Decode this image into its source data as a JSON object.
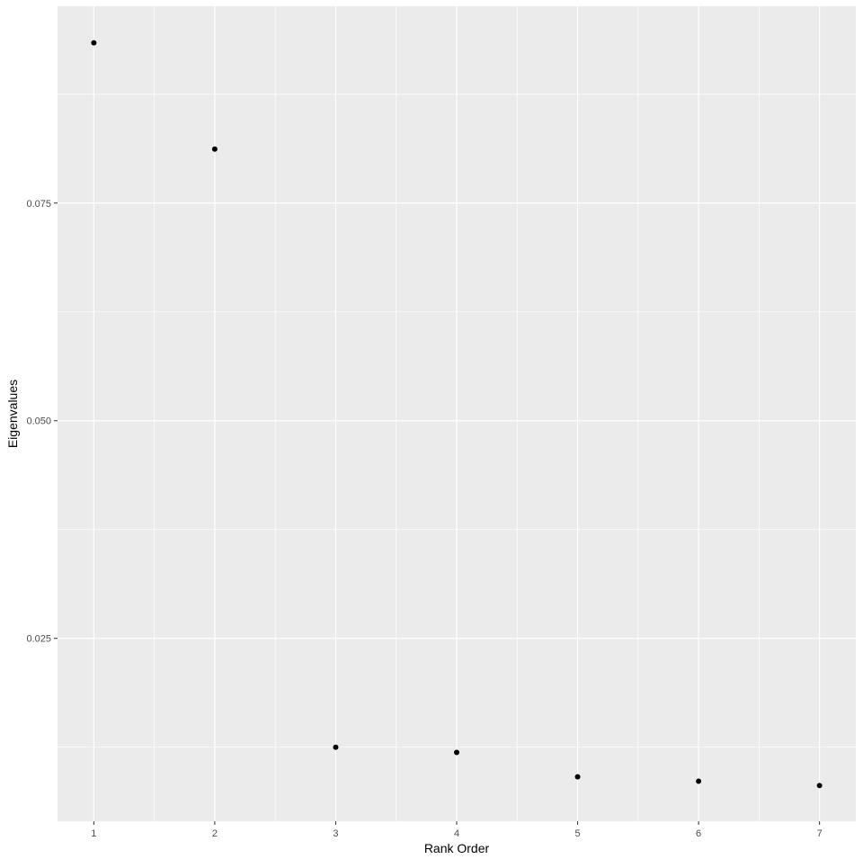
{
  "chart_data": {
    "type": "scatter",
    "title": "",
    "xlabel": "Rank Order",
    "ylabel": "Eigenvalues",
    "x": [
      1,
      2,
      3,
      4,
      5,
      6,
      7
    ],
    "y": [
      0.0934,
      0.0812,
      0.0125,
      0.0119,
      0.0091,
      0.0086,
      0.0081
    ],
    "xlim": [
      0.7,
      7.3
    ],
    "ylim": [
      0.004,
      0.0976
    ],
    "x_ticks": [
      1,
      2,
      3,
      4,
      5,
      6,
      7
    ],
    "x_tick_labels": [
      "1",
      "2",
      "3",
      "4",
      "5",
      "6",
      "7"
    ],
    "y_ticks": [
      0.025,
      0.05,
      0.075
    ],
    "y_tick_labels": [
      "0.025",
      "0.050",
      "0.075"
    ],
    "grid": true,
    "colors": {
      "panel": "#EBEBEB",
      "grid": "#FFFFFF",
      "point": "#000000",
      "tick_text": "#4D4D4D"
    }
  }
}
